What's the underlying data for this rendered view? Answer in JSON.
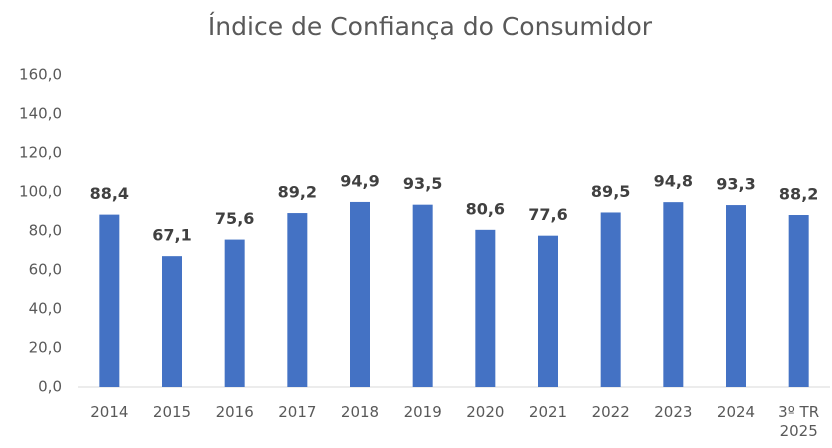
{
  "chart_data": {
    "type": "bar",
    "title": "Índice de Confiança do Consumidor",
    "categories": [
      "2014",
      "2015",
      "2016",
      "2017",
      "2018",
      "2019",
      "2020",
      "2021",
      "2022",
      "2023",
      "2024",
      "3º TR 2025"
    ],
    "values": [
      88.4,
      67.1,
      75.6,
      89.2,
      94.9,
      93.5,
      80.6,
      77.6,
      89.5,
      94.8,
      93.3,
      88.2
    ],
    "value_labels": [
      "88,4",
      "67,1",
      "75,6",
      "89,2",
      "94,9",
      "93,5",
      "80,6",
      "77,6",
      "89,5",
      "94,8",
      "93,3",
      "88,2"
    ],
    "color": "#4472c4",
    "ylim": [
      0,
      160
    ],
    "yticks": [
      {
        "value": 0,
        "label": "0,0"
      },
      {
        "value": 20,
        "label": "20,0"
      },
      {
        "value": 40,
        "label": "40,0"
      },
      {
        "value": 60,
        "label": "60,0"
      },
      {
        "value": 80,
        "label": "80,0"
      },
      {
        "value": 100,
        "label": "100,0"
      },
      {
        "value": 120,
        "label": "120,0"
      },
      {
        "value": 140,
        "label": "140,0"
      },
      {
        "value": 160,
        "label": "160,0"
      }
    ],
    "grid": false
  }
}
